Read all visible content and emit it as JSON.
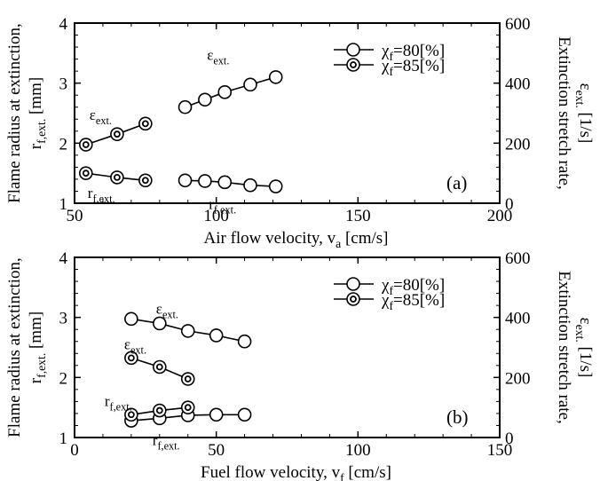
{
  "chart_data": [
    {
      "type": "scatter",
      "panel_label": "(a)",
      "xlabel": "Air flow velocity, v",
      "xlabel_sub": "a",
      "xlabel_unit": " [cm/s]",
      "ylabel_left": "Flame radius at extinction,",
      "ylabel_left2": "r",
      "ylabel_left2_sub": "f,ext.",
      "ylabel_left2_unit": " [mm]",
      "ylabel_right": "Extinction stretch rate,",
      "ylabel_right2": "ε",
      "ylabel_right2_sub": "ext.",
      "ylabel_right2_unit": " [1/s]",
      "xlim": [
        50,
        200
      ],
      "ylim_left": [
        1,
        4
      ],
      "ylim_right": [
        0,
        600
      ],
      "xticks": [
        "50",
        "100",
        "150",
        "200"
      ],
      "yticks_left": [
        "1",
        "2",
        "3",
        "4"
      ],
      "yticks_right": [
        "0",
        "200",
        "400",
        "600"
      ],
      "legend": [
        {
          "label": "χ",
          "sub": "f",
          "value": "=80[%]"
        },
        {
          "label": "χ",
          "sub": "f",
          "value": "=85[%]"
        }
      ],
      "annotations": {
        "eps_80": {
          "main": "ε",
          "sub": "ext."
        },
        "eps_85": {
          "main": "ε",
          "sub": "ext."
        },
        "rf_80": {
          "main": "r",
          "sub": "f,ext."
        },
        "rf_85": {
          "main": "r",
          "sub": "f,ext."
        }
      },
      "series": [
        {
          "name": "χf=80[%]",
          "quantity": "ε ext.",
          "axis": "right",
          "x": [
            89,
            96,
            103,
            112,
            121
          ],
          "y": [
            320,
            345,
            370,
            395,
            420
          ]
        },
        {
          "name": "χf=80[%]",
          "quantity": "r f,ext.",
          "axis": "left",
          "x": [
            89,
            96,
            103,
            112,
            121
          ],
          "y": [
            1.38,
            1.37,
            1.35,
            1.3,
            1.28
          ]
        },
        {
          "name": "χf=85[%]",
          "quantity": "ε ext.",
          "axis": "right",
          "x": [
            54,
            65,
            75
          ],
          "y": [
            195,
            230,
            265
          ]
        },
        {
          "name": "χf=85[%]",
          "quantity": "r f,ext.",
          "axis": "left",
          "x": [
            54,
            65,
            75
          ],
          "y": [
            1.5,
            1.43,
            1.38
          ]
        }
      ]
    },
    {
      "type": "scatter",
      "panel_label": "(b)",
      "xlabel": "Fuel flow velocity, v",
      "xlabel_sub": "f",
      "xlabel_unit": " [cm/s]",
      "ylabel_left": "Flame radius at extinction,",
      "ylabel_left2": "r",
      "ylabel_left2_sub": "f,ext.",
      "ylabel_left2_unit": " [mm]",
      "ylabel_right": "Extinction stretch rate,",
      "ylabel_right2": "ε",
      "ylabel_right2_sub": "ext.",
      "ylabel_right2_unit": " [1/s]",
      "xlim": [
        0,
        150
      ],
      "ylim_left": [
        1,
        4
      ],
      "ylim_right": [
        0,
        600
      ],
      "xticks": [
        "0",
        "50",
        "100",
        "150"
      ],
      "yticks_left": [
        "1",
        "2",
        "3",
        "4"
      ],
      "yticks_right": [
        "0",
        "200",
        "400",
        "600"
      ],
      "legend": [
        {
          "label": "χ",
          "sub": "f",
          "value": "=80[%]"
        },
        {
          "label": "χ",
          "sub": "f",
          "value": "=85[%]"
        }
      ],
      "annotations": {
        "eps_80": {
          "main": "ε",
          "sub": "ext."
        },
        "eps_85": {
          "main": "ε",
          "sub": "ext."
        },
        "rf_80": {
          "main": "r",
          "sub": "f,ext."
        },
        "rf_85": {
          "main": "r",
          "sub": "f,ext."
        }
      },
      "series": [
        {
          "name": "χf=80[%]",
          "quantity": "ε ext.",
          "axis": "right",
          "x": [
            20,
            30,
            40,
            50,
            60
          ],
          "y": [
            395,
            380,
            355,
            340,
            320
          ]
        },
        {
          "name": "χf=80[%]",
          "quantity": "r f,ext.",
          "axis": "left",
          "x": [
            20,
            30,
            40,
            50,
            60
          ],
          "y": [
            1.28,
            1.32,
            1.37,
            1.38,
            1.38
          ]
        },
        {
          "name": "χf=85[%]",
          "quantity": "ε ext.",
          "axis": "right",
          "x": [
            20,
            30,
            40
          ],
          "y": [
            265,
            235,
            195
          ]
        },
        {
          "name": "χf=85[%]",
          "quantity": "r f,ext.",
          "axis": "left",
          "x": [
            20,
            30,
            40
          ],
          "y": [
            1.38,
            1.45,
            1.5
          ]
        }
      ]
    }
  ]
}
